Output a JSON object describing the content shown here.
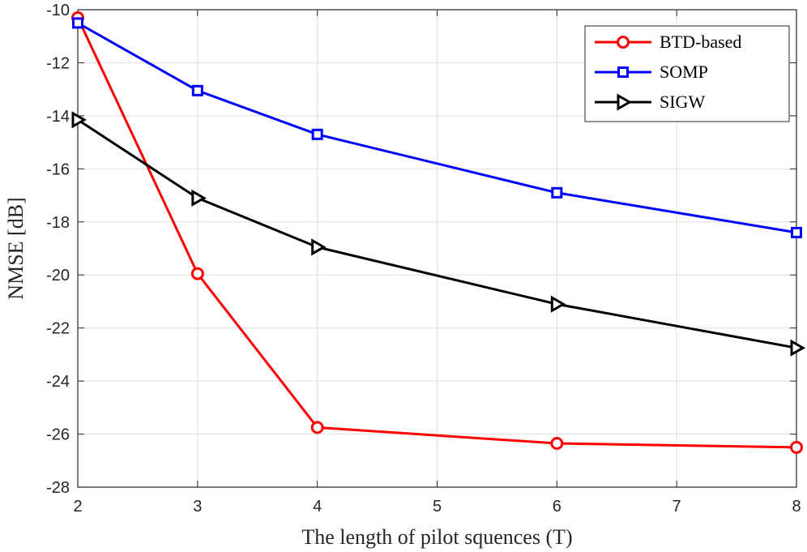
{
  "chart_data": {
    "type": "line",
    "title": "",
    "xlabel": "The length of pilot squences (T)",
    "ylabel": "NMSE [dB]",
    "xlim": [
      2,
      8
    ],
    "ylim": [
      -28,
      -10
    ],
    "xticks": [
      2,
      3,
      4,
      5,
      6,
      7,
      8
    ],
    "yticks": [
      -10,
      -12,
      -14,
      -16,
      -18,
      -20,
      -22,
      -24,
      -26,
      -28
    ],
    "grid": true,
    "legend_position": "top-right",
    "series": [
      {
        "name": "BTD-based",
        "color": "#ff0000",
        "marker": "circle",
        "x": [
          2,
          3,
          4,
          6,
          8
        ],
        "y": [
          -10.3,
          -19.95,
          -25.75,
          -26.35,
          -26.5
        ]
      },
      {
        "name": "SOMP",
        "color": "#0000ff",
        "marker": "square",
        "x": [
          2,
          3,
          4,
          6,
          8
        ],
        "y": [
          -10.5,
          -13.05,
          -14.7,
          -16.9,
          -18.4
        ]
      },
      {
        "name": "SIGW",
        "color": "#000000",
        "marker": "triangle-right",
        "x": [
          2,
          3,
          4,
          6,
          8
        ],
        "y": [
          -14.15,
          -17.1,
          -18.95,
          -21.1,
          -22.75
        ]
      }
    ]
  }
}
